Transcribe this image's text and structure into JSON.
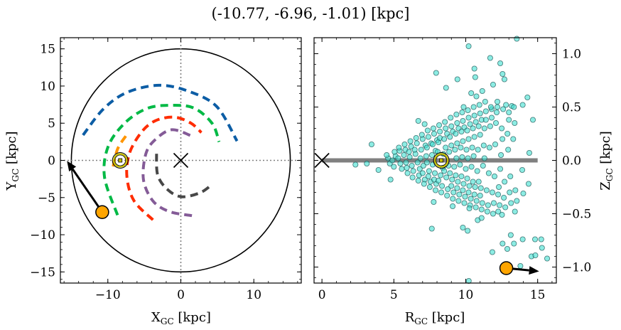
{
  "chart_data": [
    {
      "type": "line",
      "panel": "left",
      "title": "(-10.77, -6.96, -1.01) [kpc]",
      "xlabel": {
        "main": "X",
        "sub": "GC",
        "unit": " [kpc]"
      },
      "ylabel": {
        "main": "Y",
        "sub": "GC",
        "unit": " [kpc]"
      },
      "xlim": [
        -16.5,
        16.5
      ],
      "ylim": [
        -16.5,
        16.5
      ],
      "xticks": [
        -10,
        0,
        10
      ],
      "xtick_labels": [
        "−10",
        "0",
        "10"
      ],
      "yticks": [
        -15,
        -10,
        -5,
        0,
        5,
        10,
        15
      ],
      "ytick_labels": [
        "−15",
        "−10",
        "−5",
        "0",
        "5",
        "10",
        "15"
      ],
      "grid": false,
      "boundary_circle_radius": 15,
      "reference_lines": {
        "x": 0,
        "y": 0,
        "style": "dotted",
        "color": "#808080"
      },
      "galactic_center": {
        "x": 0,
        "y": 0,
        "marker": "x"
      },
      "sun": {
        "x": -8.3,
        "y": 0,
        "marker": "sun-symbol",
        "color": "#c8c000"
      },
      "target": {
        "x": -10.77,
        "y": -6.96,
        "color": "#FFA500"
      },
      "target_arrow_to": {
        "x": -15.6,
        "y": -0.07
      },
      "orbits": [
        {
          "color": "#0C5DA5",
          "points": [
            [
              -13.4,
              3.4
            ],
            [
              -10.6,
              6.92
            ],
            [
              -7.38,
              9.14
            ],
            [
              -3.0,
              10.1
            ],
            [
              1.04,
              9.3
            ],
            [
              4.92,
              7.24
            ],
            [
              7.7,
              2.6
            ]
          ]
        },
        {
          "color": "#00B945",
          "points": [
            [
              -8.67,
              -7.36
            ],
            [
              -10.45,
              -2.29
            ],
            [
              -9.97,
              1.84
            ],
            [
              -7.7,
              5.0
            ],
            [
              -4.79,
              6.92
            ],
            [
              -1.87,
              7.4
            ],
            [
              1.68,
              7.08
            ],
            [
              4.27,
              5.0
            ],
            [
              5.24,
              2.48
            ]
          ]
        },
        {
          "color": "#FF9500",
          "points": [
            [
              -7.54,
              3.27
            ],
            [
              -8.67,
              1.52
            ],
            [
              -9.32,
              -1.02
            ]
          ]
        },
        {
          "color": "#FF2C00",
          "points": [
            [
              -3.82,
              -8.0
            ],
            [
              -6.4,
              -5.46
            ],
            [
              -7.38,
              -2.29
            ],
            [
              -7.06,
              0.89
            ],
            [
              -5.44,
              3.74
            ],
            [
              -3.5,
              5.33
            ],
            [
              -0.9,
              5.81
            ],
            [
              1.36,
              5.02
            ],
            [
              2.82,
              3.74
            ]
          ]
        },
        {
          "color": "#845B97",
          "points": [
            [
              1.52,
              -7.43
            ],
            [
              -1.55,
              -6.89
            ],
            [
              -3.82,
              -5.46
            ],
            [
              -5.12,
              -2.6
            ],
            [
              -4.79,
              0.89
            ],
            [
              -3.5,
              2.79
            ],
            [
              -1.23,
              4.12
            ],
            [
              1.52,
              3.27
            ]
          ]
        },
        {
          "color": "#474747",
          "points": [
            [
              -3.33,
              0.89
            ],
            [
              -3.17,
              -1.97
            ],
            [
              -1.87,
              -3.88
            ],
            [
              0.07,
              -4.89
            ],
            [
              2.65,
              -4.35
            ],
            [
              4.27,
              -3.24
            ]
          ]
        }
      ]
    },
    {
      "type": "scatter",
      "panel": "right",
      "xlabel": {
        "main": "R",
        "sub": "GC",
        "unit": " [kpc]"
      },
      "ylabel": {
        "main": "Z",
        "sub": "GC",
        "unit": " [kpc]"
      },
      "xlim": [
        -0.55,
        16.3
      ],
      "ylim": [
        -1.15,
        1.15
      ],
      "xticks": [
        0,
        5,
        10,
        15
      ],
      "xtick_labels": [
        "0",
        "5",
        "10",
        "15"
      ],
      "yticks": [
        -1.0,
        -0.5,
        0.0,
        0.5,
        1.0
      ],
      "ytick_labels": [
        "−1.0",
        "−0.5",
        "0.0",
        "0.5",
        "1.0"
      ],
      "yaxis_side": "right",
      "grid": false,
      "disk_line": {
        "from": 0,
        "to": 15,
        "z": 0,
        "color": "#808080"
      },
      "galactic_center": {
        "R": 0,
        "Z": 0,
        "marker": "x"
      },
      "sun": {
        "R": 8.3,
        "Z": 0,
        "color": "#c8c000"
      },
      "target": {
        "R": 12.82,
        "Z": -1.01,
        "color": "#FFA500"
      },
      "target_arrow_to": {
        "R": 15.1,
        "Z": -1.04
      },
      "point_color": "#40E0D0",
      "points": [
        [
          13.55,
          1.14
        ],
        [
          10.2,
          1.07
        ],
        [
          11.7,
          0.96
        ],
        [
          12.4,
          0.91
        ],
        [
          7.94,
          0.82
        ],
        [
          10.6,
          0.86
        ],
        [
          10.66,
          0.78
        ],
        [
          12.56,
          0.81
        ],
        [
          9.42,
          0.76
        ],
        [
          8.63,
          0.68
        ],
        [
          12.69,
          0.76
        ],
        [
          10.38,
          0.63
        ],
        [
          10.74,
          0.6
        ],
        [
          11.15,
          0.65
        ],
        [
          11.9,
          0.71
        ],
        [
          14.29,
          0.59
        ],
        [
          13.96,
          0.52
        ],
        [
          14.67,
          0.38
        ],
        [
          13.2,
          0.51
        ],
        [
          6.7,
          0.37
        ],
        [
          7.14,
          0.34
        ],
        [
          3.45,
          0.15
        ],
        [
          2.33,
          -0.04
        ],
        [
          3.12,
          -0.03
        ],
        [
          3.93,
          -0.09
        ],
        [
          4.77,
          -0.18
        ],
        [
          7.77,
          -0.39
        ],
        [
          9.09,
          -0.43
        ],
        [
          7.64,
          -0.64
        ],
        [
          9.8,
          -0.63
        ],
        [
          10.13,
          -0.66
        ],
        [
          10.83,
          -0.56
        ],
        [
          11.1,
          -0.54
        ],
        [
          12.26,
          -0.48
        ],
        [
          12.52,
          -0.51
        ],
        [
          13.42,
          -0.48
        ],
        [
          14.42,
          0.07
        ],
        [
          14.37,
          -0.22
        ],
        [
          14.0,
          -0.31
        ],
        [
          13.93,
          -0.09
        ],
        [
          13.13,
          -0.7
        ],
        [
          12.56,
          -0.78
        ],
        [
          13.35,
          -0.78
        ],
        [
          13.96,
          -0.74
        ],
        [
          14.82,
          -0.74
        ],
        [
          15.25,
          -0.74
        ],
        [
          15.3,
          -0.82
        ],
        [
          12.89,
          -0.83
        ],
        [
          11.85,
          -0.86
        ],
        [
          14.57,
          -0.9
        ],
        [
          14.84,
          -0.89
        ],
        [
          15.66,
          -0.92
        ],
        [
          10.21,
          -1.13
        ],
        [
          13.8,
          -0.99
        ],
        [
          12.69,
          -0.99
        ],
        [
          4.6,
          0.02
        ],
        [
          4.72,
          -0.03
        ],
        [
          4.5,
          0.05
        ],
        [
          5.0,
          -0.06
        ],
        [
          5.12,
          0.04
        ],
        [
          4.9,
          0.0
        ],
        [
          5.05,
          0.08
        ],
        [
          5.4,
          0.09
        ],
        [
          5.55,
          -0.08
        ],
        [
          5.3,
          0.02
        ],
        [
          5.45,
          -0.03
        ],
        [
          5.35,
          0.12
        ],
        [
          5.8,
          0.1
        ],
        [
          5.95,
          -0.12
        ],
        [
          5.7,
          0.05
        ],
        [
          5.85,
          -0.02
        ],
        [
          5.75,
          0.15
        ],
        [
          5.9,
          -0.07
        ],
        [
          6.2,
          0.13
        ],
        [
          6.35,
          -0.1
        ],
        [
          6.1,
          0.03
        ],
        [
          6.25,
          -0.05
        ],
        [
          6.15,
          0.18
        ],
        [
          6.3,
          -0.16
        ],
        [
          6.05,
          0.08
        ],
        [
          6.6,
          0.16
        ],
        [
          6.75,
          -0.14
        ],
        [
          6.5,
          0.06
        ],
        [
          6.65,
          -0.02
        ],
        [
          6.55,
          0.21
        ],
        [
          6.7,
          -0.19
        ],
        [
          6.45,
          0.1
        ],
        [
          6.8,
          -0.08
        ],
        [
          7.0,
          0.2
        ],
        [
          7.15,
          -0.18
        ],
        [
          6.9,
          0.1
        ],
        [
          7.05,
          -0.05
        ],
        [
          6.95,
          0.24
        ],
        [
          7.1,
          -0.22
        ],
        [
          6.85,
          0.02
        ],
        [
          7.2,
          0.14
        ],
        [
          7.0,
          -0.12
        ],
        [
          7.4,
          0.22
        ],
        [
          7.55,
          -0.2
        ],
        [
          7.3,
          0.12
        ],
        [
          7.45,
          -0.1
        ],
        [
          7.35,
          0.28
        ],
        [
          7.5,
          -0.25
        ],
        [
          7.25,
          0.04
        ],
        [
          7.6,
          0.16
        ],
        [
          7.4,
          -0.15
        ],
        [
          7.3,
          -0.02
        ],
        [
          7.8,
          0.25
        ],
        [
          7.95,
          -0.22
        ],
        [
          7.7,
          0.15
        ],
        [
          7.85,
          -0.12
        ],
        [
          7.75,
          0.3
        ],
        [
          7.9,
          -0.28
        ],
        [
          7.65,
          0.05
        ],
        [
          8.0,
          0.19
        ],
        [
          7.8,
          -0.18
        ],
        [
          7.7,
          -0.04
        ],
        [
          7.9,
          0.09
        ],
        [
          8.2,
          0.27
        ],
        [
          8.35,
          -0.24
        ],
        [
          8.1,
          0.17
        ],
        [
          8.25,
          -0.14
        ],
        [
          8.15,
          0.33
        ],
        [
          8.3,
          -0.3
        ],
        [
          8.05,
          0.08
        ],
        [
          8.4,
          -0.07
        ],
        [
          8.2,
          0.21
        ],
        [
          8.1,
          -0.19
        ],
        [
          8.6,
          0.3
        ],
        [
          8.75,
          -0.27
        ],
        [
          8.5,
          0.2
        ],
        [
          8.65,
          -0.16
        ],
        [
          8.55,
          0.36
        ],
        [
          8.7,
          -0.33
        ],
        [
          8.45,
          0.06
        ],
        [
          8.8,
          -0.05
        ],
        [
          8.6,
          0.12
        ],
        [
          8.5,
          -0.1
        ],
        [
          8.7,
          0.25
        ],
        [
          9.0,
          0.32
        ],
        [
          9.15,
          -0.3
        ],
        [
          8.9,
          0.22
        ],
        [
          9.05,
          -0.18
        ],
        [
          8.95,
          0.4
        ],
        [
          9.1,
          -0.36
        ],
        [
          8.85,
          0.08
        ],
        [
          9.2,
          -0.06
        ],
        [
          9.0,
          0.14
        ],
        [
          8.9,
          -0.12
        ],
        [
          9.1,
          0.27
        ],
        [
          9.0,
          -0.24
        ],
        [
          9.4,
          0.35
        ],
        [
          9.55,
          -0.32
        ],
        [
          9.3,
          0.25
        ],
        [
          9.45,
          -0.2
        ],
        [
          9.35,
          0.43
        ],
        [
          9.5,
          -0.38
        ],
        [
          9.25,
          0.1
        ],
        [
          9.6,
          -0.04
        ],
        [
          9.4,
          0.16
        ],
        [
          9.3,
          -0.14
        ],
        [
          9.5,
          0.3
        ],
        [
          9.4,
          -0.26
        ],
        [
          9.35,
          0.02
        ],
        [
          9.8,
          0.37
        ],
        [
          9.95,
          -0.34
        ],
        [
          9.7,
          0.27
        ],
        [
          9.85,
          -0.22
        ],
        [
          9.75,
          0.45
        ],
        [
          9.9,
          -0.4
        ],
        [
          9.65,
          0.12
        ],
        [
          10.0,
          -0.08
        ],
        [
          9.8,
          0.18
        ],
        [
          9.7,
          -0.15
        ],
        [
          9.9,
          0.31
        ],
        [
          9.8,
          -0.28
        ],
        [
          9.75,
          0.03
        ],
        [
          9.85,
          0.5
        ],
        [
          10.2,
          0.4
        ],
        [
          10.35,
          -0.36
        ],
        [
          10.1,
          0.28
        ],
        [
          10.25,
          -0.24
        ],
        [
          10.15,
          0.47
        ],
        [
          10.3,
          -0.42
        ],
        [
          10.05,
          0.1
        ],
        [
          10.4,
          -0.06
        ],
        [
          10.2,
          0.2
        ],
        [
          10.1,
          -0.17
        ],
        [
          10.3,
          0.34
        ],
        [
          10.2,
          -0.3
        ],
        [
          10.15,
          0.02
        ],
        [
          10.25,
          -0.45
        ],
        [
          10.6,
          0.42
        ],
        [
          10.75,
          -0.38
        ],
        [
          10.5,
          0.3
        ],
        [
          10.65,
          -0.25
        ],
        [
          10.55,
          0.5
        ],
        [
          10.7,
          -0.44
        ],
        [
          10.45,
          0.12
        ],
        [
          10.8,
          -0.1
        ],
        [
          10.6,
          0.22
        ],
        [
          10.5,
          -0.2
        ],
        [
          10.7,
          0.36
        ],
        [
          10.6,
          -0.32
        ],
        [
          10.55,
          0.04
        ],
        [
          11.0,
          0.44
        ],
        [
          11.15,
          -0.4
        ],
        [
          10.9,
          0.32
        ],
        [
          11.05,
          -0.26
        ],
        [
          10.95,
          0.52
        ],
        [
          11.1,
          -0.46
        ],
        [
          10.85,
          0.1
        ],
        [
          11.2,
          -0.05
        ],
        [
          11.0,
          0.24
        ],
        [
          10.9,
          -0.2
        ],
        [
          11.1,
          0.38
        ],
        [
          11.0,
          -0.33
        ],
        [
          11.4,
          0.46
        ],
        [
          11.55,
          -0.42
        ],
        [
          11.3,
          0.3
        ],
        [
          11.45,
          -0.28
        ],
        [
          11.35,
          0.55
        ],
        [
          11.5,
          -0.48
        ],
        [
          11.25,
          0.14
        ],
        [
          11.6,
          -0.12
        ],
        [
          11.4,
          0.38
        ],
        [
          11.3,
          0.02
        ],
        [
          11.8,
          0.48
        ],
        [
          11.95,
          -0.4
        ],
        [
          11.7,
          0.32
        ],
        [
          11.85,
          -0.3
        ],
        [
          11.75,
          0.5
        ],
        [
          11.9,
          -0.5
        ],
        [
          11.65,
          0.12
        ],
        [
          12.0,
          -0.15
        ],
        [
          11.8,
          0.4
        ],
        [
          12.2,
          0.5
        ],
        [
          12.35,
          -0.42
        ],
        [
          12.1,
          0.35
        ],
        [
          12.25,
          -0.32
        ],
        [
          12.15,
          0.45
        ],
        [
          12.3,
          -0.25
        ],
        [
          12.05,
          0.15
        ],
        [
          12.4,
          -0.08
        ],
        [
          12.2,
          0.55
        ],
        [
          12.6,
          0.48
        ],
        [
          12.75,
          -0.44
        ],
        [
          12.5,
          0.3
        ],
        [
          12.65,
          -0.35
        ],
        [
          12.55,
          0.2
        ],
        [
          12.7,
          -0.2
        ],
        [
          12.45,
          0.05
        ],
        [
          12.8,
          0.52
        ],
        [
          13.0,
          0.45
        ],
        [
          13.15,
          -0.4
        ],
        [
          12.9,
          0.25
        ],
        [
          13.05,
          -0.3
        ],
        [
          12.95,
          0.1
        ],
        [
          13.1,
          -0.15
        ],
        [
          13.0,
          0.38
        ],
        [
          13.4,
          0.35
        ],
        [
          13.55,
          -0.38
        ],
        [
          13.3,
          0.2
        ],
        [
          13.45,
          -0.28
        ],
        [
          13.35,
          0.5
        ]
      ]
    }
  ]
}
